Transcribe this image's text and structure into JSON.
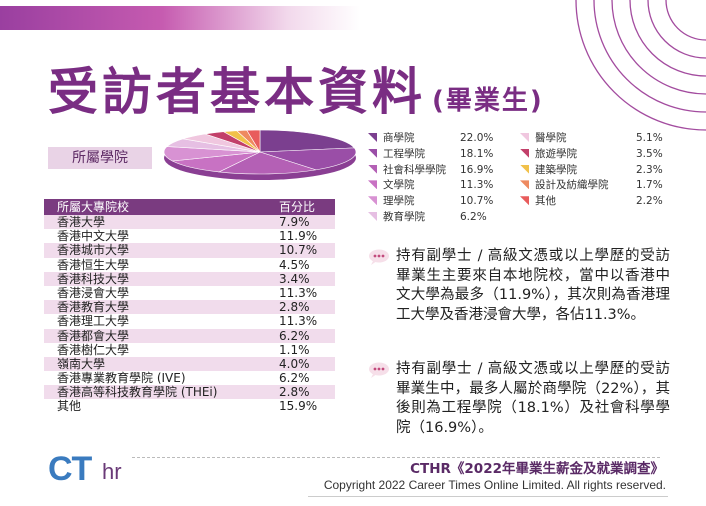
{
  "title": "受訪者基本資料",
  "subtitle": "(畢業生)",
  "faculty_label": "所屬學院",
  "table": {
    "header": {
      "name": "所屬大專院校",
      "pct": "百分比"
    },
    "rows": [
      {
        "name": "香港大學",
        "pct": "7.9%"
      },
      {
        "name": "香港中文大學",
        "pct": "11.9%"
      },
      {
        "name": "香港城市大學",
        "pct": "10.7%"
      },
      {
        "name": "香港恒生大學",
        "pct": "4.5%"
      },
      {
        "name": "香港科技大學",
        "pct": "3.4%"
      },
      {
        "name": "香港浸會大學",
        "pct": "11.3%"
      },
      {
        "name": "香港教育大學",
        "pct": "2.8%"
      },
      {
        "name": "香港理工大學",
        "pct": "11.3%"
      },
      {
        "name": "香港都會大學",
        "pct": "6.2%"
      },
      {
        "name": "香港樹仁大學",
        "pct": "1.1%"
      },
      {
        "name": "嶺南大學",
        "pct": "4.0%"
      },
      {
        "name": "香港專業教育學院 (IVE)",
        "pct": "6.2%"
      },
      {
        "name": "香港高等科技教育學院 (THEi)",
        "pct": "2.8%"
      },
      {
        "name": "其他",
        "pct": "15.9%"
      }
    ]
  },
  "chart_data": {
    "type": "pie",
    "labels": [
      "商學院",
      "工程學院",
      "社會科學學院",
      "文學院",
      "理學院",
      "教育學院",
      "醫學院",
      "旅遊學院",
      "建築學院",
      "設計及紡織學院",
      "其他"
    ],
    "values": [
      22.0,
      18.1,
      16.9,
      11.3,
      10.7,
      6.2,
      5.1,
      3.5,
      2.3,
      1.7,
      2.2
    ],
    "value_labels": [
      "22.0%",
      "18.1%",
      "16.9%",
      "11.3%",
      "10.7%",
      "6.2%",
      "5.1%",
      "3.5%",
      "2.3%",
      "1.7%",
      "2.2%"
    ],
    "colors": [
      "#7b3f8f",
      "#9a4ea7",
      "#b460b5",
      "#c872c3",
      "#d892d3",
      "#e6bfe3",
      "#f0c7df",
      "#c2406a",
      "#f1c14a",
      "#ee8a60",
      "#e85c5c"
    ],
    "legend_placement": "right"
  },
  "notes": [
    "持有副學士 / 高級文憑或以上學歷的受訪畢業生主要來自本地院校，當中以香港中文大學為最多（11.9%），其次則為香港理工大學及香港浸會大學，各佔11.3%。",
    "持有副學士 / 高級文憑或以上學歷的受訪畢業生中，最多人屬於商學院（22%），其後則為工程學院（18.1%）及社會科學學院（16.9%）。"
  ],
  "footer": {
    "logo_ct": "CT",
    "logo_hr": "hr",
    "survey": "CTHR《2022年畢業生薪金及就業調查》",
    "copyright": "Copyright 2022 Career Times Online Limited. All rights reserved."
  }
}
